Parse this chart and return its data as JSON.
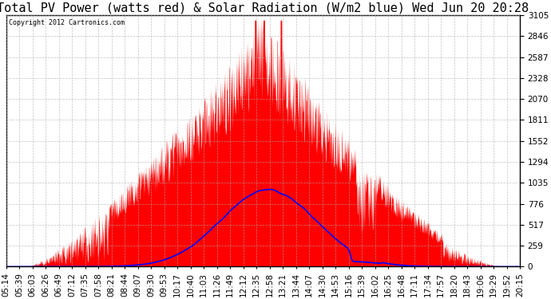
{
  "title": "Total PV Power (watts red) & Solar Radiation (W/m2 blue) Wed Jun 20 20:28",
  "copyright_text": "Copyright 2012 Cartronics.com",
  "y_max": 3104.6,
  "y_min": 0.0,
  "y_ticks": [
    0.0,
    258.7,
    517.4,
    776.1,
    1034.9,
    1293.6,
    1552.3,
    1811.0,
    2069.7,
    2328.4,
    2587.1,
    2845.8,
    3104.6
  ],
  "x_labels": [
    "05:14",
    "05:39",
    "06:03",
    "06:26",
    "06:49",
    "07:12",
    "07:35",
    "07:58",
    "08:21",
    "08:44",
    "09:07",
    "09:30",
    "09:53",
    "10:17",
    "10:40",
    "11:03",
    "11:26",
    "11:49",
    "12:12",
    "12:35",
    "12:58",
    "13:21",
    "13:44",
    "14:07",
    "14:30",
    "14:53",
    "15:16",
    "15:39",
    "16:02",
    "16:25",
    "16:48",
    "17:11",
    "17:34",
    "17:57",
    "18:20",
    "18:43",
    "19:06",
    "19:29",
    "19:52",
    "20:15"
  ],
  "background_color": "#ffffff",
  "plot_bg_color": "#ffffff",
  "grid_color": "#aaaaaa",
  "title_color": "#000000",
  "pv_color": "red",
  "solar_color": "blue",
  "title_fontsize": 11,
  "tick_fontsize": 7.5,
  "pv_peak": 3104.6,
  "solar_peak": 950.0
}
